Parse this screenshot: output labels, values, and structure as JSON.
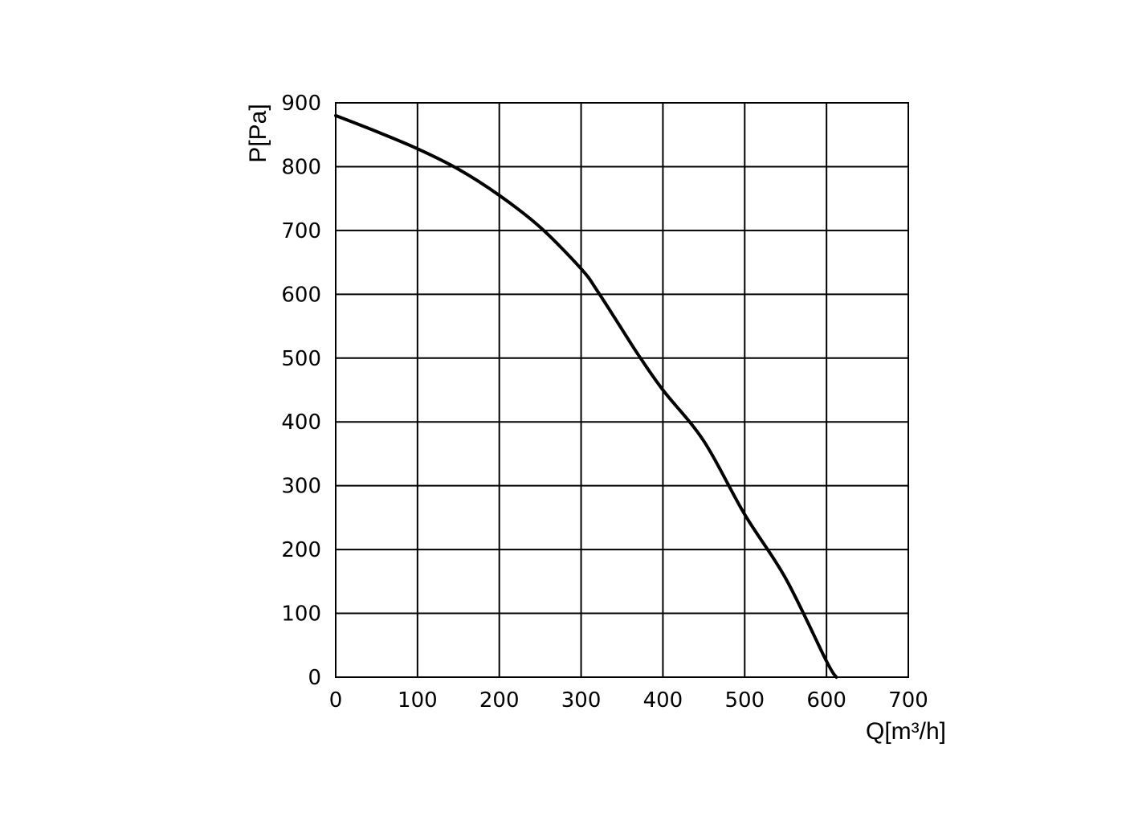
{
  "chart_data": {
    "type": "line",
    "title": "",
    "xlabel": "Q[m³/h]",
    "ylabel": "P[Pa]",
    "xlim": [
      0,
      700
    ],
    "ylim": [
      0,
      900
    ],
    "x_ticks": [
      0,
      100,
      200,
      300,
      400,
      500,
      600,
      700
    ],
    "y_ticks": [
      0,
      100,
      200,
      300,
      400,
      500,
      600,
      700,
      800,
      900
    ],
    "grid": true,
    "legend": "none",
    "series": [
      {
        "color": "#000000",
        "x": [
          0,
          50,
          100,
          150,
          200,
          250,
          300,
          320,
          350,
          370,
          400,
          450,
          500,
          550,
          600,
          612
        ],
        "y": [
          880,
          855,
          828,
          796,
          755,
          705,
          640,
          605,
          545,
          505,
          450,
          370,
          255,
          155,
          25,
          0
        ]
      }
    ]
  }
}
